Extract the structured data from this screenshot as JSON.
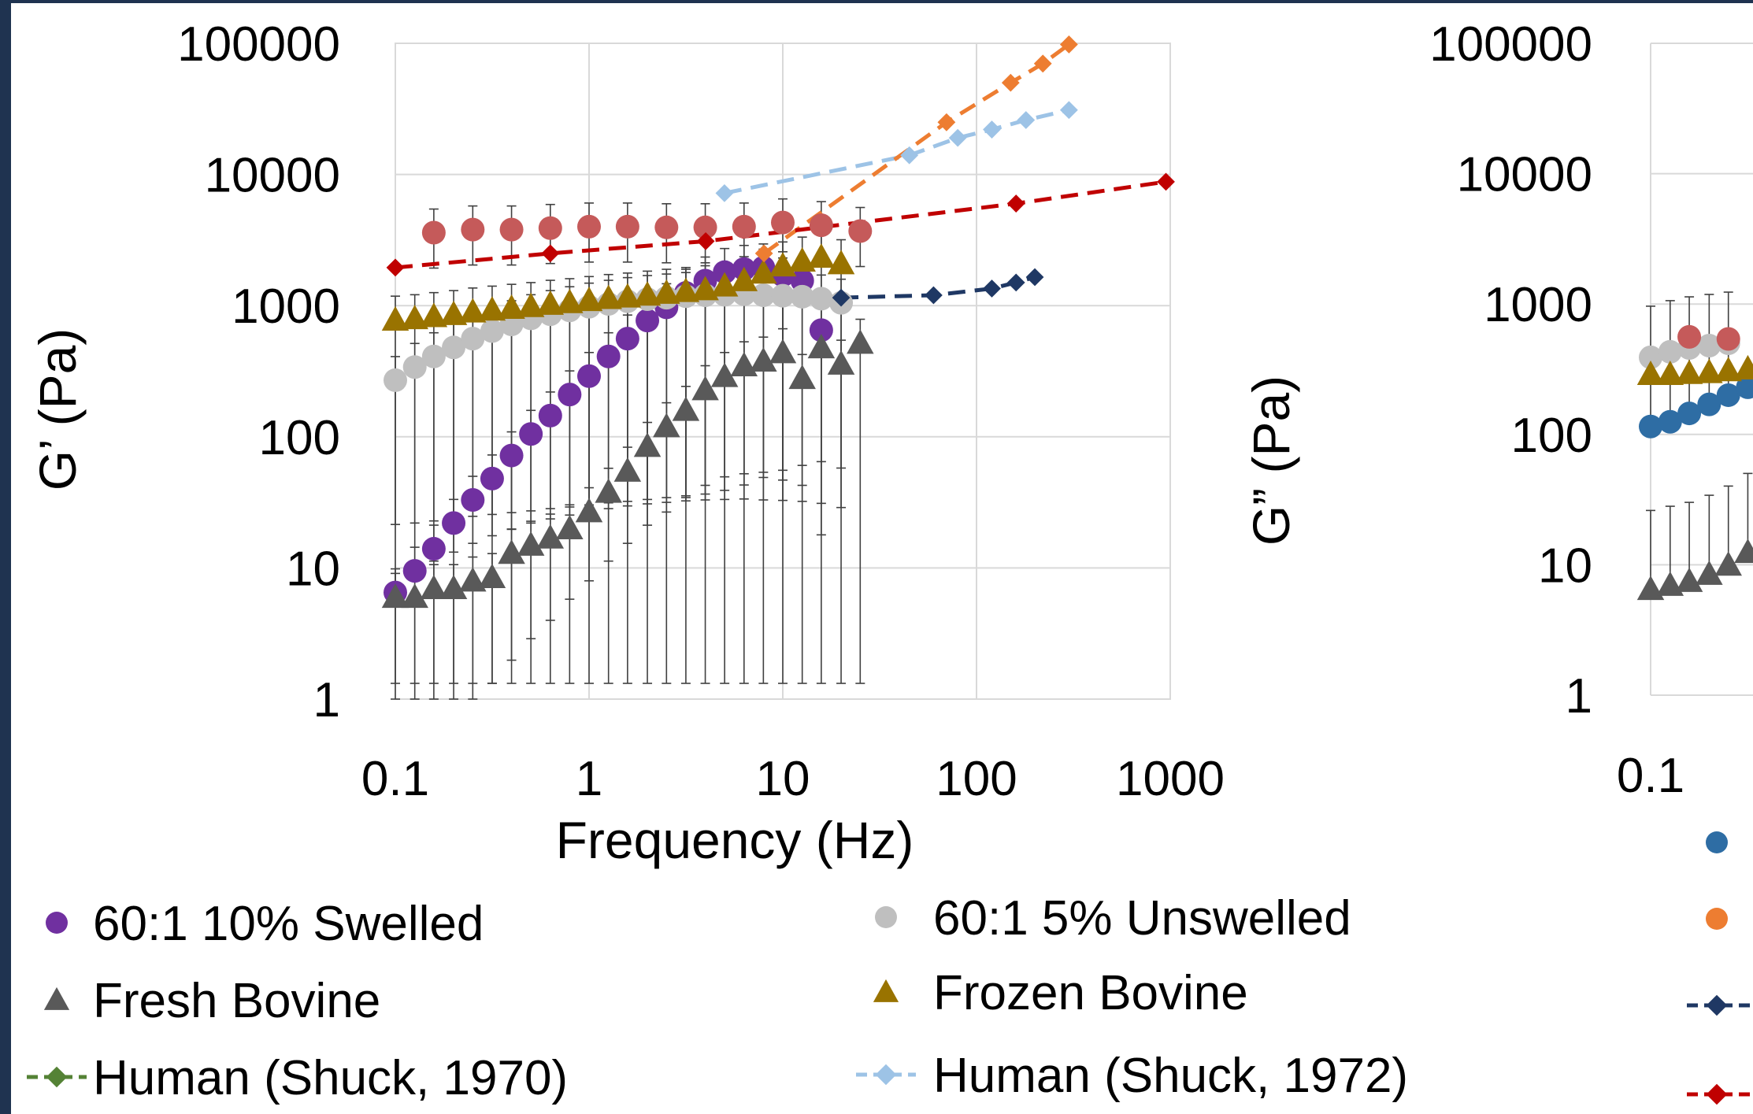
{
  "chart_data": [
    {
      "type": "scatter",
      "xlabel": "Frequency (Hz)",
      "ylabel": "G’ (Pa)",
      "xscale": "log",
      "yscale": "log",
      "xlim": [
        0.1,
        1000
      ],
      "ylim": [
        1,
        100000
      ],
      "x_ticks": [
        "0.1",
        "1",
        "10",
        "100",
        "1000"
      ],
      "y_ticks": [
        "1",
        "10",
        "100",
        "1000",
        "10000",
        "100000"
      ],
      "grid": true,
      "legend_position": "bottom",
      "series": [
        {
          "name": "60:1 10% Swelled",
          "color": "#7030a0",
          "marker": "circle",
          "x": [
            0.1,
            0.126,
            0.158,
            0.2,
            0.251,
            0.316,
            0.398,
            0.501,
            0.631,
            0.794,
            1,
            1.26,
            1.58,
            2,
            2.51,
            3.16,
            3.98,
            5.01,
            6.31,
            7.94,
            10,
            12.6,
            15.8
          ],
          "y": [
            6.5,
            9.5,
            14,
            22,
            33,
            48,
            72,
            105,
            145,
            210,
            290,
            410,
            560,
            770,
            970,
            1250,
            1550,
            1800,
            1900,
            1950,
            1700,
            1550,
            650
          ]
        },
        {
          "name": "60:1 5% Unswelled",
          "color": "#bfbfbf",
          "marker": "circle",
          "x": [
            0.1,
            0.126,
            0.158,
            0.2,
            0.251,
            0.316,
            0.398,
            0.501,
            0.631,
            0.794,
            1,
            1.26,
            1.58,
            2,
            2.51,
            3.16,
            3.98,
            5.01,
            6.31,
            7.94,
            10,
            12.6,
            15.8,
            20
          ],
          "y": [
            270,
            340,
            410,
            480,
            560,
            640,
            720,
            800,
            860,
            920,
            980,
            1030,
            1080,
            1120,
            1150,
            1180,
            1200,
            1210,
            1220,
            1200,
            1190,
            1170,
            1130,
            1050
          ]
        },
        {
          "name": "Fresh Bovine",
          "color": "#595959",
          "marker": "triangle",
          "x": [
            0.1,
            0.126,
            0.158,
            0.2,
            0.251,
            0.316,
            0.398,
            0.501,
            0.631,
            0.794,
            1,
            1.26,
            1.58,
            2,
            2.51,
            3.16,
            3.98,
            5.01,
            6.31,
            7.94,
            10,
            12.6,
            15.8,
            20,
            25.1
          ],
          "y": [
            6,
            6,
            7,
            7,
            8,
            8.5,
            13,
            15,
            17,
            20,
            27,
            38,
            55,
            85,
            120,
            160,
            230,
            290,
            350,
            380,
            440,
            280,
            480,
            360,
            520
          ]
        },
        {
          "name": "Frozen Bovine",
          "color": "#997300",
          "marker": "triangle",
          "x": [
            0.1,
            0.126,
            0.158,
            0.2,
            0.251,
            0.316,
            0.398,
            0.501,
            0.631,
            0.794,
            1,
            1.26,
            1.58,
            2,
            2.51,
            3.16,
            3.98,
            5.01,
            6.31,
            7.94,
            10,
            12.6,
            15.8,
            20
          ],
          "y": [
            780,
            800,
            830,
            860,
            900,
            930,
            960,
            990,
            1030,
            1060,
            1100,
            1140,
            1170,
            1210,
            1250,
            1290,
            1330,
            1420,
            1560,
            1780,
            2020,
            2200,
            2350,
            2100
          ]
        },
        {
          "name": "",
          "color": "#c55a5a",
          "marker": "circle",
          "x": [
            0.158,
            0.251,
            0.398,
            0.631,
            1,
            1.58,
            2.51,
            3.98,
            6.31,
            10,
            15.8,
            25.1
          ],
          "y": [
            3600,
            3800,
            3800,
            3900,
            4000,
            4000,
            3950,
            3950,
            4000,
            4300,
            4100,
            3700
          ]
        },
        {
          "name": "Human (Shuck, 1970)",
          "color": "#548235",
          "marker": "diamond",
          "dashed": true,
          "x": [],
          "y": []
        },
        {
          "name": "Human (Shuck, 1972)",
          "color": "#9dc3e6",
          "marker": "diamond",
          "dashed": true,
          "x": [
            5,
            45,
            80,
            120,
            180,
            300
          ],
          "y": [
            7200,
            14000,
            19000,
            22000,
            26000,
            31000
          ]
        },
        {
          "name": "",
          "color": "#ed7d31",
          "marker": "diamond",
          "dashed": true,
          "x": [
            8,
            70,
            150,
            220,
            300
          ],
          "y": [
            2500,
            25000,
            50000,
            70000,
            98000
          ]
        },
        {
          "name": "",
          "color": "#c00000",
          "marker": "diamond",
          "dashed": true,
          "x": [
            0.1,
            0.631,
            4,
            160,
            950
          ],
          "y": [
            1950,
            2500,
            3100,
            6000,
            8800
          ]
        },
        {
          "name": "",
          "color": "#1f3864",
          "marker": "diamond",
          "dashed": true,
          "x": [
            20,
            60,
            120,
            160,
            200
          ],
          "y": [
            1150,
            1200,
            1350,
            1500,
            1650
          ]
        }
      ]
    },
    {
      "type": "scatter",
      "ylabel": "G” (Pa)",
      "xscale": "log",
      "yscale": "log",
      "ylim": [
        1,
        100000
      ],
      "x_ticks": [
        "0.1"
      ],
      "y_ticks": [
        "1",
        "10",
        "100",
        "1000",
        "10000",
        "100000"
      ],
      "grid": true,
      "series": [
        {
          "color": "#2e6da4",
          "marker": "circle",
          "x": [
            0.1,
            0.126,
            0.158,
            0.2,
            0.251,
            0.316
          ],
          "y": [
            115,
            125,
            145,
            170,
            200,
            230
          ]
        },
        {
          "color": "#bfbfbf",
          "marker": "circle",
          "x": [
            0.1,
            0.126,
            0.158,
            0.2,
            0.251
          ],
          "y": [
            390,
            430,
            460,
            480,
            500
          ]
        },
        {
          "color": "#c55a5a",
          "marker": "circle",
          "x": [
            0.158,
            0.251
          ],
          "y": [
            560,
            540
          ]
        },
        {
          "color": "#997300",
          "marker": "triangle",
          "x": [
            0.1,
            0.126,
            0.158,
            0.2,
            0.251,
            0.316
          ],
          "y": [
            290,
            290,
            295,
            300,
            310,
            320
          ]
        },
        {
          "color": "#595959",
          "marker": "triangle",
          "x": [
            0.1,
            0.126,
            0.158,
            0.2,
            0.251,
            0.316
          ],
          "y": [
            6.5,
            7,
            7.5,
            8.5,
            10,
            12.5
          ]
        }
      ],
      "legend_markers": [
        {
          "color": "#2e6da4",
          "marker": "circle"
        },
        {
          "color": "#ed7d31",
          "marker": "circle"
        },
        {
          "color": "#1f3864",
          "marker": "diamond",
          "dashed": true
        },
        {
          "color": "#c00000",
          "marker": "diamond",
          "dashed": true
        }
      ]
    }
  ]
}
